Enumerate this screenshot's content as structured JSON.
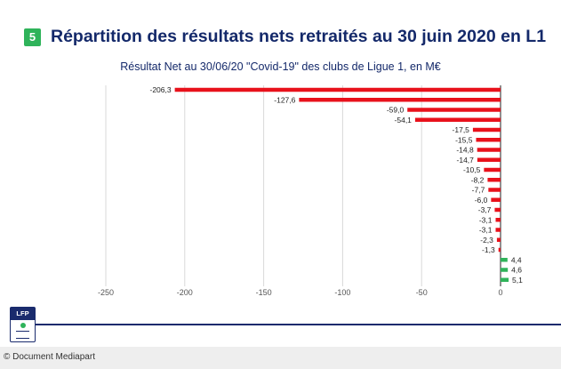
{
  "header": {
    "badge": "5",
    "title": "Répartition des résultats nets retraités au 30 juin 2020 en L1"
  },
  "chart_data": {
    "type": "bar",
    "orientation": "horizontal",
    "title": "Résultat Net au 30/06/20 \"Covid-19\" des clubs de Ligue 1, en M€",
    "xlabel": "",
    "ylabel": "",
    "xlim": [
      -250,
      0
    ],
    "x_ticks": [
      "-250",
      "-200",
      "-150",
      "-100",
      "-50",
      "0"
    ],
    "grid": "vertical",
    "values": [
      -206.3,
      -127.6,
      -59.0,
      -54.1,
      -17.5,
      -15.5,
      -14.8,
      -14.7,
      -10.5,
      -8.2,
      -7.7,
      -6.0,
      -3.7,
      -3.1,
      -3.1,
      -2.3,
      -1.3,
      4.4,
      4.6,
      5.1
    ],
    "value_labels": [
      "-206,3",
      "-127,6",
      "-59,0",
      "-54,1",
      "-17,5",
      "-15,5",
      "-14,8",
      "-14,7",
      "-10,5",
      "-8,2",
      "-7,7",
      "-6,0",
      "-3,7",
      "-3,1",
      "-3,1",
      "-2,3",
      "-1,3",
      "4,4",
      "4,6",
      "5,1"
    ],
    "colors": {
      "negative": "#e8111b",
      "positive": "#2fb35a",
      "grid": "#d9d9d9",
      "axis": "#222222"
    }
  },
  "logo": {
    "text": "LFP"
  },
  "footer": {
    "credit": "© Document Mediapart"
  }
}
